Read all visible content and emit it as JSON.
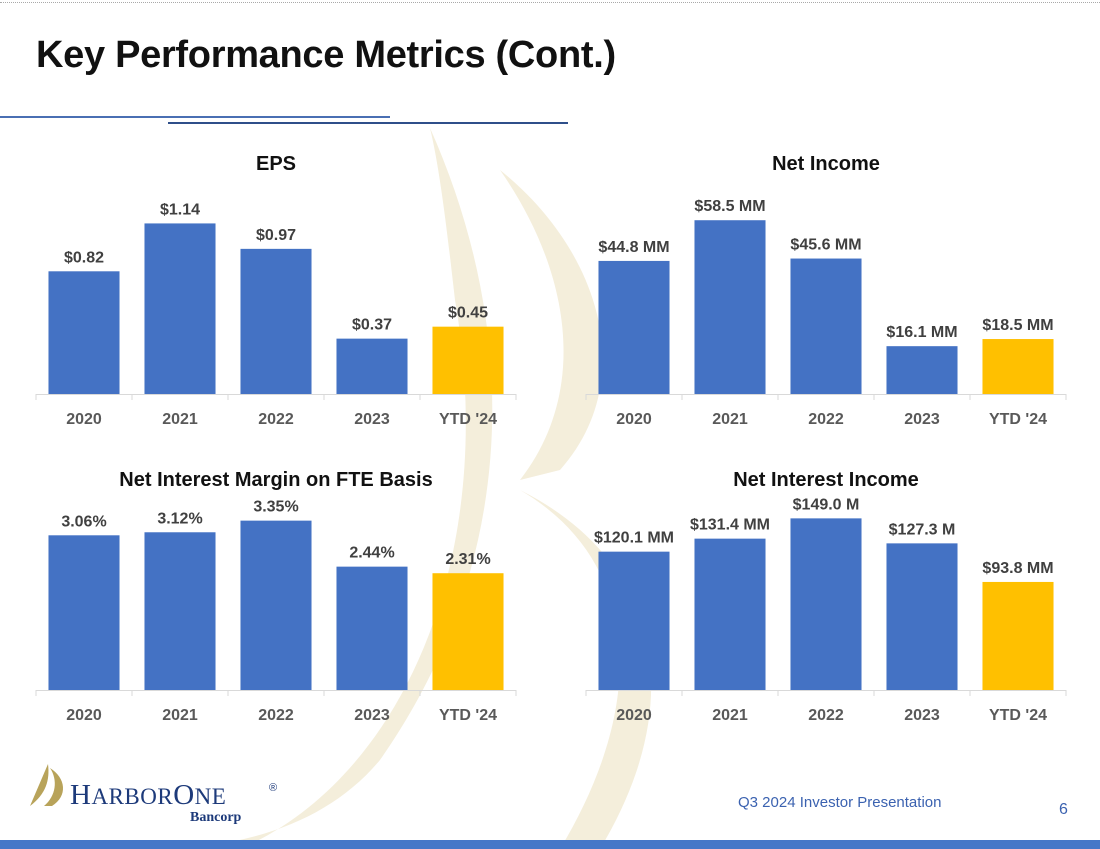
{
  "slide": {
    "title": "Key Performance Metrics (Cont.)",
    "footer_text": "Q3 2024 Investor Presentation",
    "page_number": "6"
  },
  "logo": {
    "name_a": "H",
    "name_b": "ARBOR",
    "name_c": "O",
    "name_d": "NE",
    "registered": "®",
    "subtitle": "Bancorp",
    "icon": "harborone-sail-logo-icon"
  },
  "colors": {
    "bar": "#4472C4",
    "highlight": "#FFC000",
    "label_text": "#404040",
    "axis_text": "#595959",
    "axis_line": "#d9d9d9"
  },
  "chart_data": [
    {
      "type": "bar",
      "title": "EPS",
      "categories": [
        "2020",
        "2021",
        "2022",
        "2023",
        "YTD '24"
      ],
      "values": [
        0.82,
        1.14,
        0.97,
        0.37,
        0.45
      ],
      "labels": [
        "$0.82",
        "$1.14",
        "$0.97",
        "$0.37",
        "$0.45"
      ],
      "highlight_index": 4,
      "ylim": [
        0,
        1.35
      ],
      "grid": false,
      "xlabel": "",
      "ylabel": ""
    },
    {
      "type": "bar",
      "title": "Net Income",
      "categories": [
        "2020",
        "2021",
        "2022",
        "2023",
        "YTD '24"
      ],
      "values": [
        44.8,
        58.5,
        45.6,
        16.1,
        18.5
      ],
      "labels": [
        "$44.8 MM",
        "$58.5 MM",
        "$45.6 MM",
        "$16.1 MM",
        "$18.5 MM"
      ],
      "highlight_index": 4,
      "ylim": [
        0,
        68
      ],
      "grid": false,
      "xlabel": "",
      "ylabel": ""
    },
    {
      "type": "bar",
      "title": "Net Interest Margin on FTE Basis",
      "categories": [
        "2020",
        "2021",
        "2022",
        "2023",
        "YTD '24"
      ],
      "values": [
        3.06,
        3.12,
        3.35,
        2.44,
        2.31
      ],
      "labels": [
        "3.06%",
        "3.12%",
        "3.35%",
        "2.44%",
        "2.31%"
      ],
      "highlight_index": 4,
      "ylim": [
        0,
        3.6
      ],
      "grid": false,
      "xlabel": "",
      "ylabel": ""
    },
    {
      "type": "bar",
      "title": "Net Interest Income",
      "categories": [
        "2020",
        "2021",
        "2022",
        "2023",
        "YTD '24"
      ],
      "values": [
        120.1,
        131.4,
        149.0,
        127.3,
        93.8
      ],
      "labels": [
        "$120.1 MM",
        "$131.4 MM",
        "$149.0 M",
        "$127.3 M",
        "$93.8 MM"
      ],
      "highlight_index": 4,
      "ylim": [
        0,
        158
      ],
      "grid": false,
      "xlabel": "",
      "ylabel": ""
    }
  ]
}
